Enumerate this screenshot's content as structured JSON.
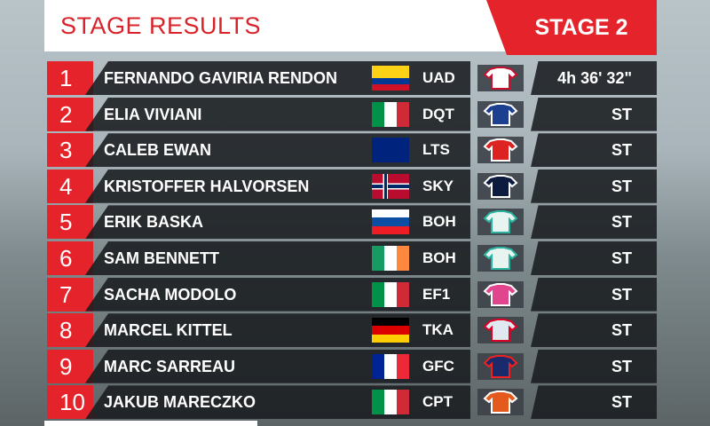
{
  "header": {
    "title": "STAGE RESULTS",
    "stage": "STAGE 2"
  },
  "table": {
    "rows": [
      {
        "rank": "1",
        "name": "FERNANDO GAVIRIA RENDON",
        "team": "UAD",
        "time": "4h 36' 32\""
      },
      {
        "rank": "2",
        "name": "ELIA VIVIANI",
        "team": "DQT",
        "time": "ST"
      },
      {
        "rank": "3",
        "name": "CALEB EWAN",
        "team": "LTS",
        "time": "ST"
      },
      {
        "rank": "4",
        "name": "KRISTOFFER HALVORSEN",
        "team": "SKY",
        "time": "ST"
      },
      {
        "rank": "5",
        "name": "ERIK BASKA",
        "team": "BOH",
        "time": "ST"
      },
      {
        "rank": "6",
        "name": "SAM BENNETT",
        "team": "BOH",
        "time": "ST"
      },
      {
        "rank": "7",
        "name": "SACHA MODOLO",
        "team": "EF1",
        "time": "ST"
      },
      {
        "rank": "8",
        "name": "MARCEL KITTEL",
        "team": "TKA",
        "time": "ST"
      },
      {
        "rank": "9",
        "name": "MARC SARREAU",
        "team": "GFC",
        "time": "ST"
      },
      {
        "rank": "10",
        "name": "JAKUB MARECZKO",
        "team": "CPT",
        "time": "ST"
      }
    ]
  }
}
